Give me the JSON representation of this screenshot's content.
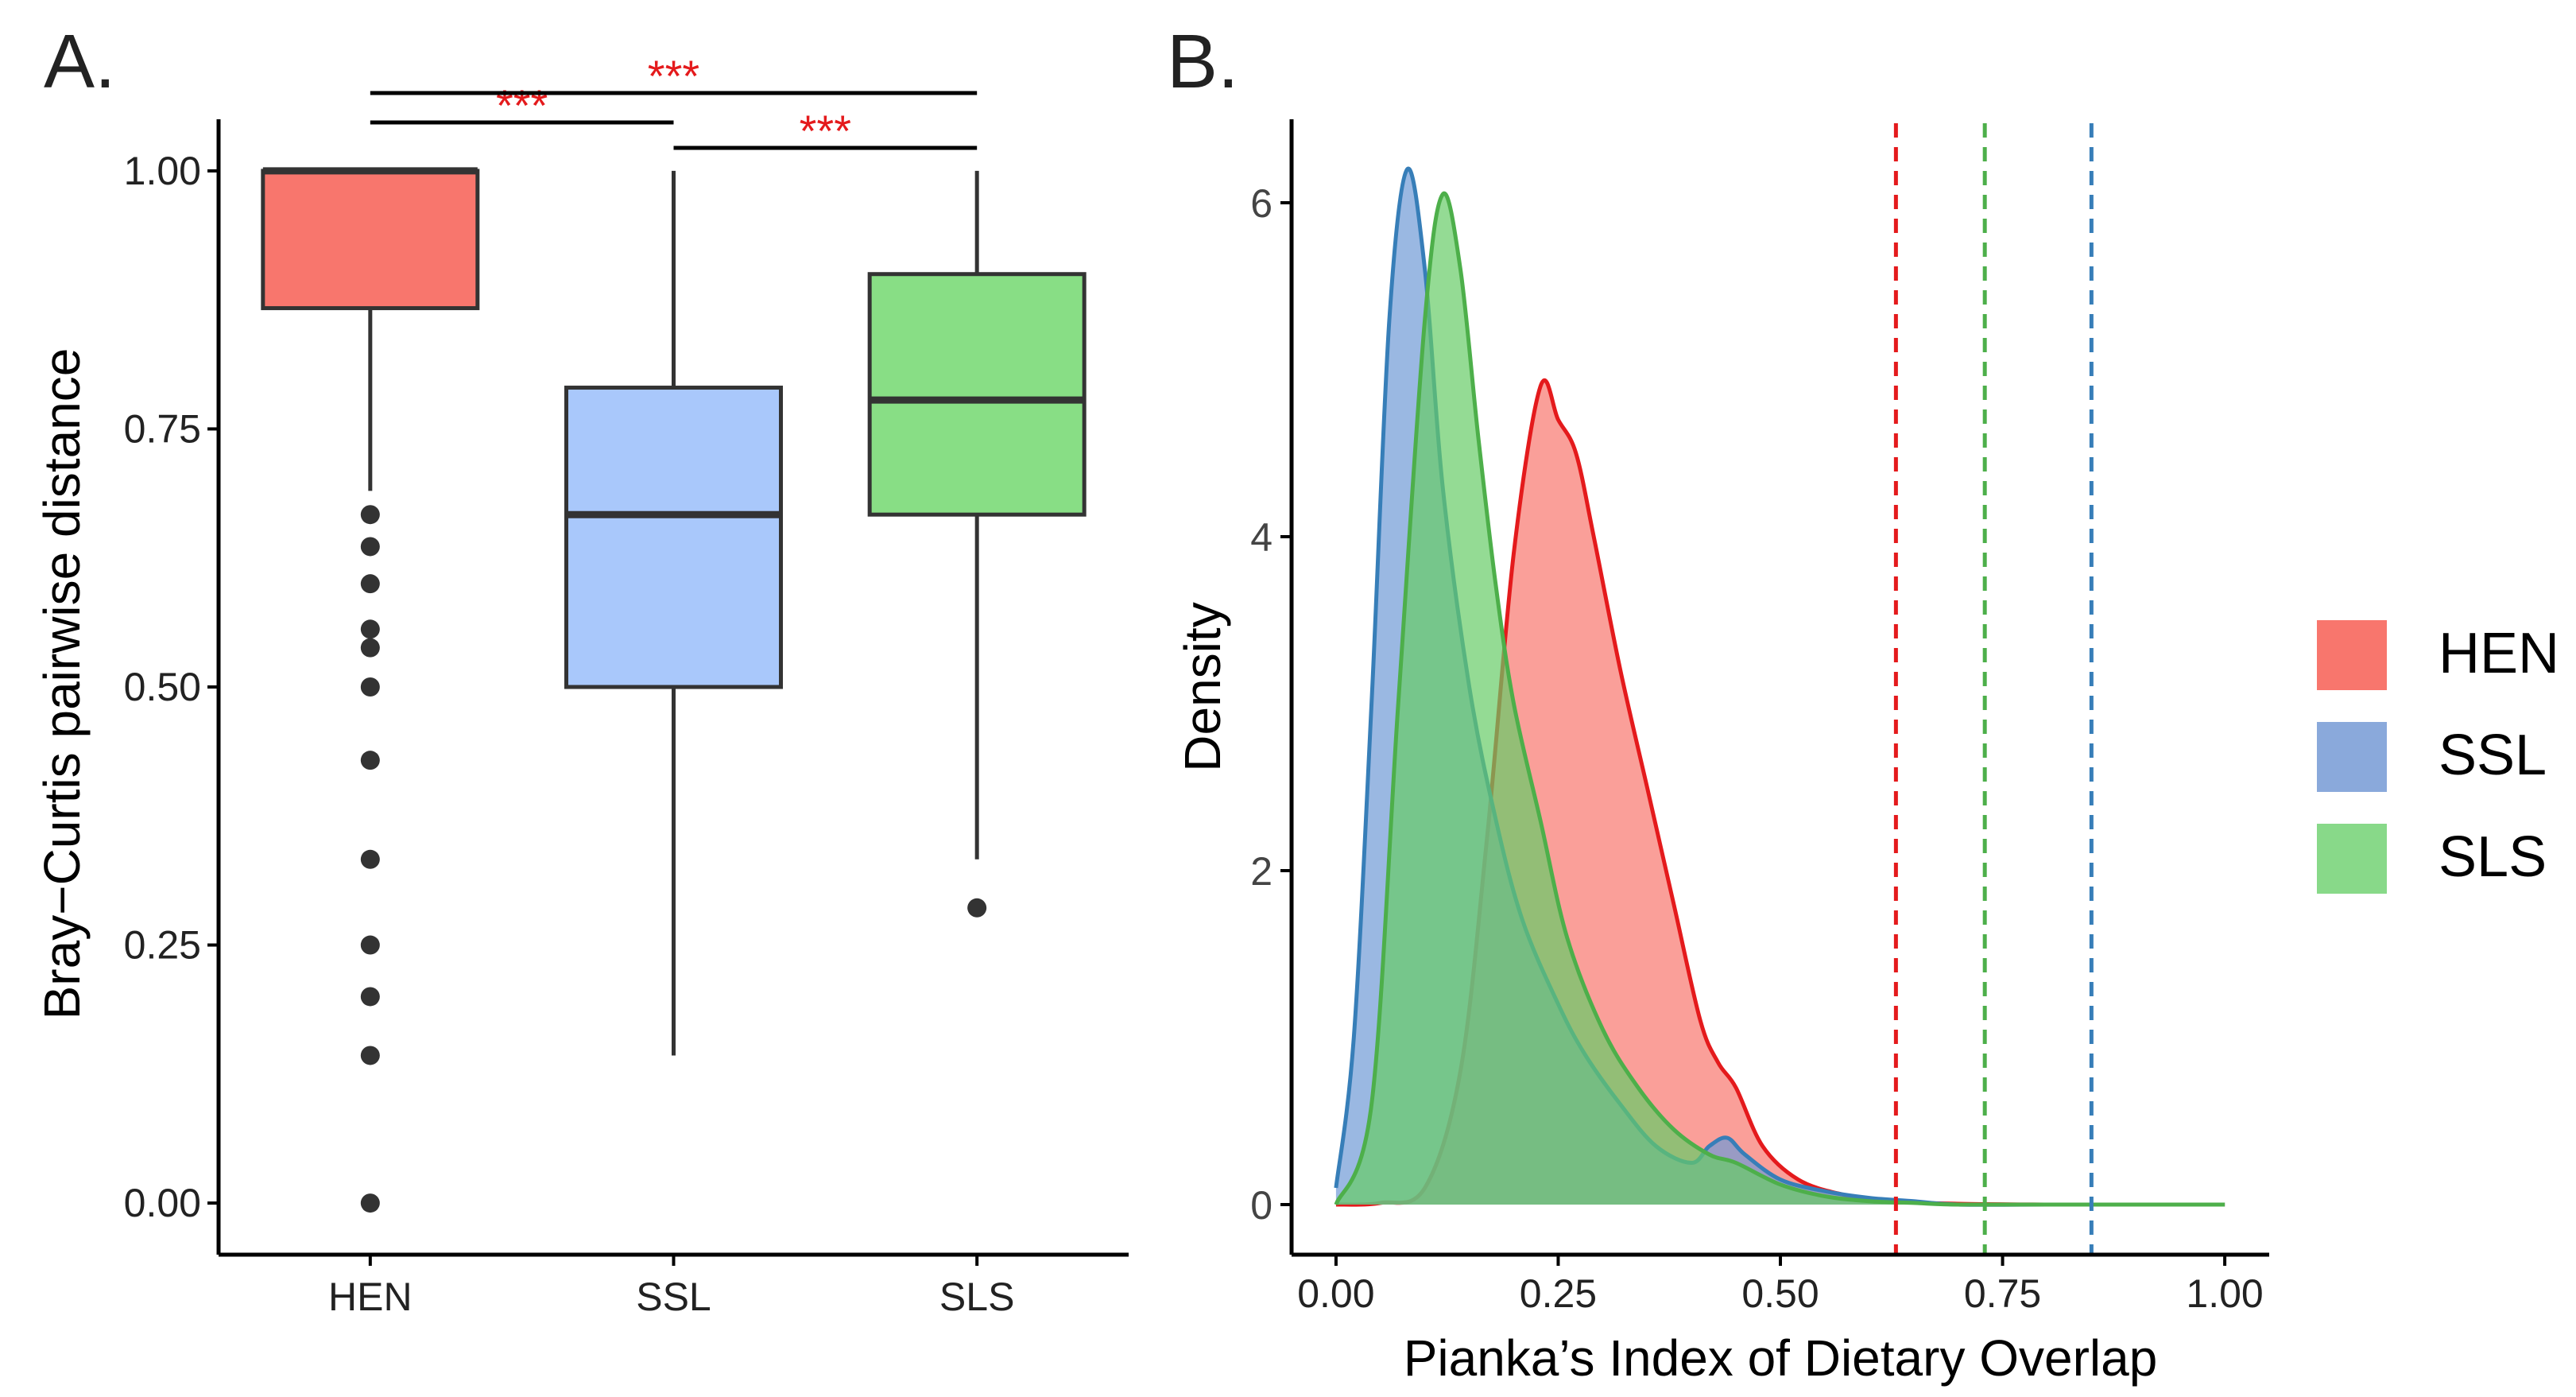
{
  "chart_data": [
    {
      "panel_label": "A.",
      "type": "box",
      "ylabel": "Bray−Curtis pairwise distance",
      "xlabel": "",
      "ylim": [
        -0.05,
        1.05
      ],
      "ytick_values": [
        0,
        0.25,
        0.5,
        0.75,
        1
      ],
      "ytick_labels": [
        "0.00",
        "0.25",
        "0.50",
        "0.75",
        "1.00"
      ],
      "categories": [
        "HEN",
        "SSL",
        "SLS"
      ],
      "boxes": [
        {
          "group": "HEN",
          "q1": 0.867,
          "median": 1.0,
          "q3": 1.0,
          "whisker_low": 0.69,
          "whisker_high": 1.0,
          "outliers": [
            0.667,
            0.636,
            0.6,
            0.556,
            0.538,
            0.5,
            0.429,
            0.333,
            0.25,
            0.2,
            0.143,
            0.0
          ]
        },
        {
          "group": "SSL",
          "q1": 0.5,
          "median": 0.667,
          "q3": 0.79,
          "whisker_low": 0.143,
          "whisker_high": 1.0,
          "outliers": []
        },
        {
          "group": "SLS",
          "q1": 0.667,
          "median": 0.778,
          "q3": 0.9,
          "whisker_low": 0.333,
          "whisker_high": 1.0,
          "outliers": [
            0.286
          ]
        }
      ],
      "significance": [
        {
          "from": "HEN",
          "to": "SSL",
          "label": "***"
        },
        {
          "from": "SSL",
          "to": "SLS",
          "label": "***"
        },
        {
          "from": "HEN",
          "to": "SLS",
          "label": "***"
        }
      ]
    },
    {
      "panel_label": "B.",
      "type": "area",
      "xlabel": "Pianka’s Index of Dietary Overlap",
      "ylabel": "Density",
      "xlim": [
        -0.05,
        1.05
      ],
      "ylim": [
        -0.3,
        6.5
      ],
      "xtick_values": [
        0,
        0.25,
        0.5,
        0.75,
        1
      ],
      "xtick_labels": [
        "0.00",
        "0.25",
        "0.50",
        "0.75",
        "1.00"
      ],
      "ytick_values": [
        0,
        2,
        4,
        6
      ],
      "ytick_labels": [
        "0",
        "2",
        "4",
        "6"
      ],
      "series": [
        {
          "name": "HEN",
          "color": "#E41A1C",
          "fill": "#F8766D",
          "x": [
            0.0,
            0.05,
            0.1,
            0.14,
            0.17,
            0.2,
            0.23,
            0.25,
            0.27,
            0.29,
            0.32,
            0.35,
            0.38,
            0.41,
            0.43,
            0.45,
            0.48,
            0.52,
            0.57,
            0.62,
            0.7,
            0.8,
            0.9,
            1.0
          ],
          "y": [
            0.0,
            0.01,
            0.1,
            0.8,
            2.2,
            3.9,
            4.9,
            4.7,
            4.5,
            4.0,
            3.2,
            2.5,
            1.8,
            1.1,
            0.85,
            0.7,
            0.35,
            0.15,
            0.06,
            0.02,
            0.005,
            0.0,
            0.0,
            0.0
          ]
        },
        {
          "name": "SSL",
          "color": "#377EB8",
          "fill": "#6F9AD6",
          "x": [
            0.0,
            0.02,
            0.04,
            0.06,
            0.08,
            0.1,
            0.12,
            0.15,
            0.18,
            0.21,
            0.25,
            0.28,
            0.32,
            0.36,
            0.4,
            0.42,
            0.44,
            0.46,
            0.5,
            0.55,
            0.6,
            0.65,
            0.7,
            0.8,
            1.0
          ],
          "y": [
            0.1,
            1.0,
            3.0,
            5.3,
            6.2,
            5.6,
            4.3,
            3.1,
            2.3,
            1.7,
            1.2,
            0.9,
            0.6,
            0.35,
            0.25,
            0.35,
            0.4,
            0.3,
            0.15,
            0.08,
            0.04,
            0.02,
            0.0,
            0.0,
            0.0
          ]
        },
        {
          "name": "SLS",
          "color": "#4DAF4A",
          "fill": "#66CC66",
          "x": [
            0.0,
            0.04,
            0.07,
            0.1,
            0.12,
            0.14,
            0.16,
            0.18,
            0.2,
            0.23,
            0.26,
            0.3,
            0.34,
            0.38,
            0.42,
            0.45,
            0.5,
            0.55,
            0.6,
            0.65,
            0.7,
            0.8,
            1.0
          ],
          "y": [
            0.0,
            0.6,
            3.0,
            5.3,
            6.05,
            5.6,
            4.6,
            3.7,
            3.0,
            2.3,
            1.6,
            1.05,
            0.7,
            0.45,
            0.3,
            0.25,
            0.12,
            0.05,
            0.02,
            0.01,
            0.0,
            0.0,
            0.0
          ]
        }
      ],
      "vlines": [
        {
          "series": "HEN",
          "x": 0.63,
          "color": "#E41A1C"
        },
        {
          "series": "SLS",
          "x": 0.73,
          "color": "#4DAF4A"
        },
        {
          "series": "SSL",
          "x": 0.85,
          "color": "#377EB8"
        }
      ],
      "legend": {
        "position": "right",
        "entries": [
          {
            "label": "HEN",
            "color": "#F8766D"
          },
          {
            "label": "SSL",
            "color": "#8AA9DB"
          },
          {
            "label": "SLS",
            "color": "#88D989"
          }
        ]
      }
    }
  ]
}
